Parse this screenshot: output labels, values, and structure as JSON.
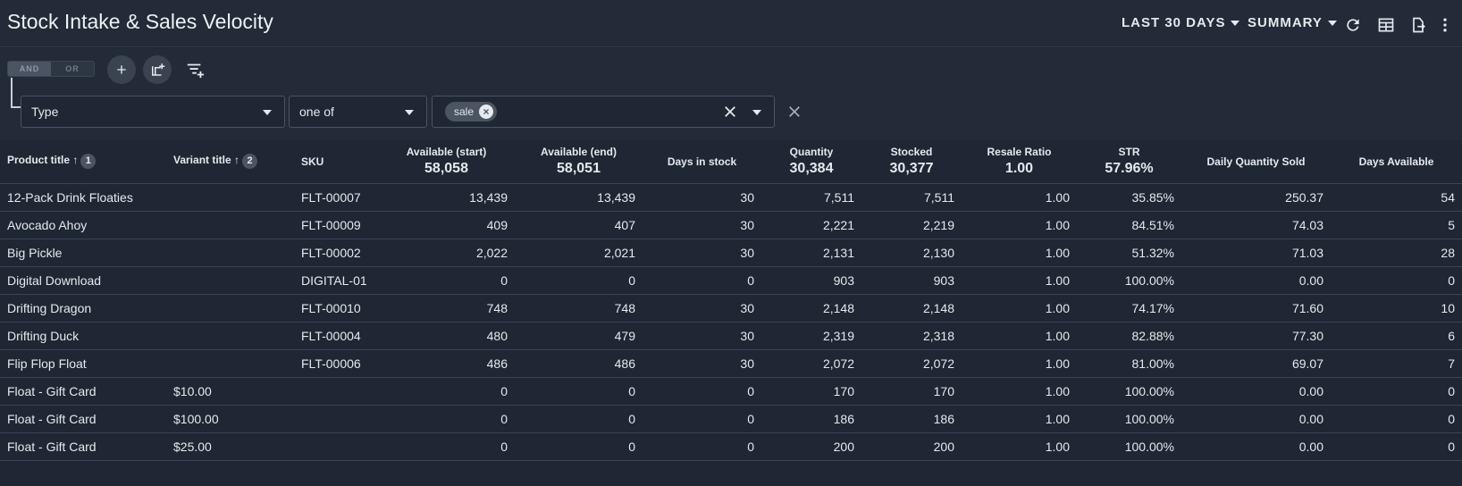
{
  "header": {
    "title": "Stock Intake & Sales Velocity",
    "date_range": "LAST 30 DAYS",
    "view": "SUMMARY"
  },
  "icons": {
    "refresh": "refresh-icon",
    "columns": "table-columns-icon",
    "export": "export-icon",
    "more": "more-vertical-icon"
  },
  "filter": {
    "and_label": "AND",
    "or_label": "OR",
    "field": "Type",
    "operator": "one of",
    "chips": [
      "sale"
    ]
  },
  "table": {
    "columns": [
      {
        "label": "Product title",
        "sum": "",
        "sort": "1"
      },
      {
        "label": "Variant title",
        "sum": "",
        "sort": "2"
      },
      {
        "label": "SKU",
        "sum": ""
      },
      {
        "label": "Available (start)",
        "sum": "58,058"
      },
      {
        "label": "Available (end)",
        "sum": "58,051"
      },
      {
        "label": "Days in stock",
        "sum": ""
      },
      {
        "label": "Quantity",
        "sum": "30,384"
      },
      {
        "label": "Stocked",
        "sum": "30,377"
      },
      {
        "label": "Resale Ratio",
        "sum": "1.00"
      },
      {
        "label": "STR",
        "sum": "57.96%"
      },
      {
        "label": "Daily Quantity Sold",
        "sum": ""
      },
      {
        "label": "Days Available",
        "sum": ""
      }
    ],
    "rows": [
      [
        "12-Pack Drink Floaties",
        "",
        "FLT-00007",
        "13,439",
        "13,439",
        "30",
        "7,511",
        "7,511",
        "1.00",
        "35.85%",
        "250.37",
        "54"
      ],
      [
        "Avocado Ahoy",
        "",
        "FLT-00009",
        "409",
        "407",
        "30",
        "2,221",
        "2,219",
        "1.00",
        "84.51%",
        "74.03",
        "5"
      ],
      [
        "Big Pickle",
        "",
        "FLT-00002",
        "2,022",
        "2,021",
        "30",
        "2,131",
        "2,130",
        "1.00",
        "51.32%",
        "71.03",
        "28"
      ],
      [
        "Digital Download",
        "",
        "DIGITAL-01",
        "0",
        "0",
        "0",
        "903",
        "903",
        "1.00",
        "100.00%",
        "0.00",
        "0"
      ],
      [
        "Drifting Dragon",
        "",
        "FLT-00010",
        "748",
        "748",
        "30",
        "2,148",
        "2,148",
        "1.00",
        "74.17%",
        "71.60",
        "10"
      ],
      [
        "Drifting Duck",
        "",
        "FLT-00004",
        "480",
        "479",
        "30",
        "2,319",
        "2,318",
        "1.00",
        "82.88%",
        "77.30",
        "6"
      ],
      [
        "Flip Flop Float",
        "",
        "FLT-00006",
        "486",
        "486",
        "30",
        "2,072",
        "2,072",
        "1.00",
        "81.00%",
        "69.07",
        "7"
      ],
      [
        "Float - Gift Card",
        "$10.00",
        "",
        "0",
        "0",
        "0",
        "170",
        "170",
        "1.00",
        "100.00%",
        "0.00",
        "0"
      ],
      [
        "Float - Gift Card",
        "$100.00",
        "",
        "0",
        "0",
        "0",
        "186",
        "186",
        "1.00",
        "100.00%",
        "0.00",
        "0"
      ],
      [
        "Float - Gift Card",
        "$25.00",
        "",
        "0",
        "0",
        "0",
        "200",
        "200",
        "1.00",
        "100.00%",
        "0.00",
        "0"
      ]
    ]
  }
}
